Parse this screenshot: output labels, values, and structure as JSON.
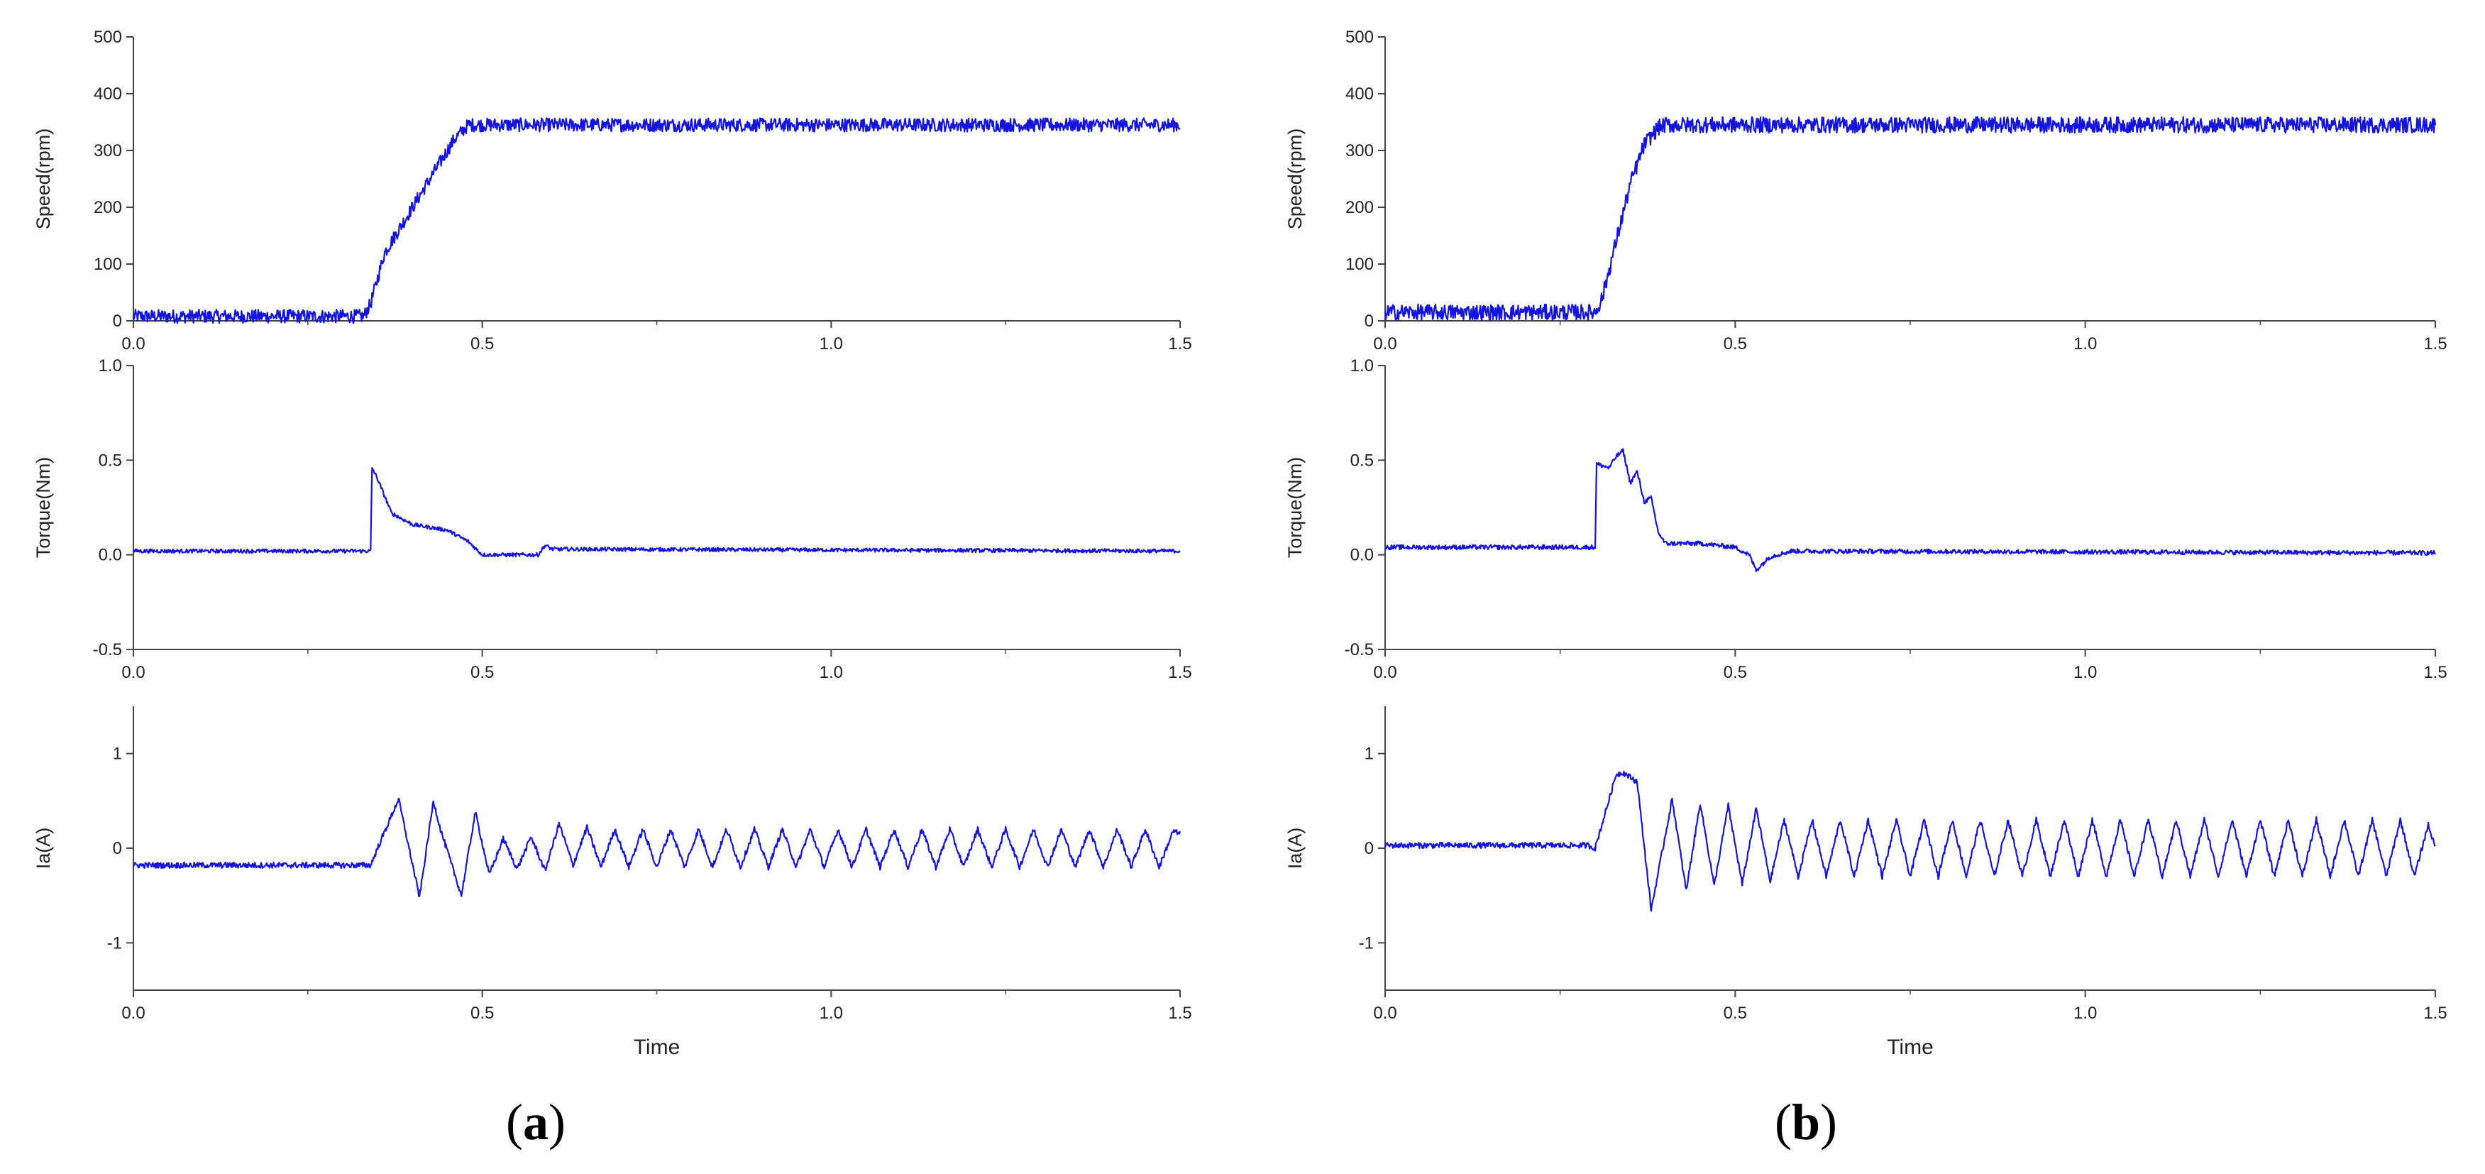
{
  "line_color": "#1414e0",
  "axis_color": "#444444",
  "panels": [
    {
      "label_open": "(",
      "label_letter": "a",
      "label_close": ")"
    },
    {
      "label_open": "(",
      "label_letter": "b",
      "label_close": ")"
    }
  ],
  "chart_data": [
    {
      "type": "line",
      "panel": "a",
      "ylabel": "Speed(rpm)",
      "xlabel": "",
      "xlim": [
        0,
        1.5
      ],
      "ylim": [
        0,
        500
      ],
      "xticks": [
        "0.0",
        "0.5",
        "1.0",
        "1.5"
      ],
      "yticks": [
        "0",
        "100",
        "200",
        "300",
        "400",
        "500"
      ],
      "series": [
        {
          "x": [
            0,
            0.33,
            0.34,
            0.36,
            0.38,
            0.4,
            0.43,
            0.46,
            0.48,
            0.5,
            1.0,
            1.5
          ],
          "y": [
            8,
            8,
            30,
            120,
            160,
            200,
            260,
            320,
            345,
            345,
            345,
            345
          ],
          "noise": 12
        }
      ]
    },
    {
      "type": "line",
      "panel": "a",
      "ylabel": "Torque(Nm)",
      "xlabel": "",
      "xlim": [
        0,
        1.5
      ],
      "ylim": [
        -0.5,
        1.0
      ],
      "xticks": [
        "0.0",
        "0.5",
        "1.0",
        "1.5"
      ],
      "yticks": [
        "-0.5",
        "0.0",
        "0.5",
        "1.0"
      ],
      "series": [
        {
          "x": [
            0,
            0.34,
            0.342,
            0.35,
            0.37,
            0.4,
            0.45,
            0.48,
            0.5,
            0.58,
            0.59,
            0.6,
            1.5
          ],
          "y": [
            0.02,
            0.02,
            0.46,
            0.4,
            0.22,
            0.16,
            0.13,
            0.07,
            0.0,
            0.0,
            0.05,
            0.03,
            0.02
          ],
          "noise": 0.01
        }
      ]
    },
    {
      "type": "line",
      "panel": "a",
      "ylabel": "Ia(A)",
      "xlabel": "Time",
      "xlim": [
        0,
        1.5
      ],
      "ylim": [
        -1.5,
        1.5
      ],
      "xticks": [
        "0.0",
        "0.5",
        "1.0",
        "1.5"
      ],
      "yticks": [
        "-1",
        "0",
        "1"
      ],
      "series": [
        {
          "x": [
            0,
            0.34,
            0.35,
            0.38,
            0.41,
            0.43,
            0.44,
            0.47,
            0.49,
            0.51,
            0.53,
            0.55,
            0.57,
            0.59,
            0.61,
            0.63,
            0.65,
            0.67,
            0.69,
            0.71,
            0.73,
            0.75,
            0.77,
            0.79,
            0.81,
            0.83,
            0.85,
            0.87,
            0.89,
            0.91,
            0.93,
            0.95,
            0.97,
            0.99,
            1.01,
            1.03,
            1.05,
            1.07,
            1.09,
            1.11,
            1.13,
            1.15,
            1.17,
            1.19,
            1.21,
            1.23,
            1.25,
            1.27,
            1.29,
            1.31,
            1.33,
            1.35,
            1.37,
            1.39,
            1.41,
            1.43,
            1.45,
            1.47,
            1.49,
            1.5
          ],
          "y": [
            -0.18,
            -0.18,
            0.0,
            0.52,
            -0.52,
            0.5,
            0.2,
            -0.5,
            0.38,
            -0.28,
            0.1,
            -0.22,
            0.12,
            -0.24,
            0.26,
            -0.18,
            0.22,
            -0.2,
            0.2,
            -0.2,
            0.2,
            -0.2,
            0.2,
            -0.2,
            0.2,
            -0.2,
            0.2,
            -0.2,
            0.2,
            -0.2,
            0.2,
            -0.2,
            0.2,
            -0.2,
            0.2,
            -0.2,
            0.2,
            -0.2,
            0.2,
            -0.2,
            0.2,
            -0.2,
            0.2,
            -0.2,
            0.2,
            -0.2,
            0.2,
            -0.2,
            0.2,
            -0.2,
            0.2,
            -0.2,
            0.2,
            -0.2,
            0.2,
            -0.2,
            0.2,
            -0.2,
            0.18,
            0.15
          ],
          "noise": 0.03
        }
      ]
    },
    {
      "type": "line",
      "panel": "b",
      "ylabel": "Speed(rpm)",
      "xlabel": "",
      "xlim": [
        0,
        1.5
      ],
      "ylim": [
        0,
        500
      ],
      "xticks": [
        "0.0",
        "0.5",
        "1.0",
        "1.5"
      ],
      "yticks": [
        "0",
        "100",
        "200",
        "300",
        "400",
        "500"
      ],
      "series": [
        {
          "x": [
            0,
            0.3,
            0.31,
            0.33,
            0.35,
            0.37,
            0.39,
            0.4,
            1.0,
            1.5
          ],
          "y": [
            15,
            15,
            40,
            140,
            240,
            310,
            340,
            345,
            345,
            345
          ],
          "noise": 14
        }
      ]
    },
    {
      "type": "line",
      "panel": "b",
      "ylabel": "Torque(Nm)",
      "xlabel": "",
      "xlim": [
        0,
        1.5
      ],
      "ylim": [
        -0.5,
        1.0
      ],
      "xticks": [
        "0.0",
        "0.5",
        "1.0",
        "1.5"
      ],
      "yticks": [
        "-0.5",
        "0.0",
        "0.5",
        "1.0"
      ],
      "series": [
        {
          "x": [
            0,
            0.3,
            0.302,
            0.32,
            0.33,
            0.34,
            0.35,
            0.36,
            0.37,
            0.38,
            0.39,
            0.4,
            0.45,
            0.5,
            0.52,
            0.53,
            0.55,
            0.58,
            1.5
          ],
          "y": [
            0.04,
            0.04,
            0.48,
            0.46,
            0.52,
            0.55,
            0.38,
            0.44,
            0.28,
            0.3,
            0.12,
            0.06,
            0.06,
            0.04,
            0.0,
            -0.08,
            -0.01,
            0.02,
            0.01
          ],
          "noise": 0.012
        }
      ]
    },
    {
      "type": "line",
      "panel": "b",
      "ylabel": "Ia(A)",
      "xlabel": "Time",
      "xlim": [
        0,
        1.5
      ],
      "ylim": [
        -1.5,
        1.5
      ],
      "xticks": [
        "0.0",
        "0.5",
        "1.0",
        "1.5"
      ],
      "yticks": [
        "-1",
        "0",
        "1"
      ],
      "series": [
        {
          "x": [
            0,
            0.29,
            0.3,
            0.33,
            0.34,
            0.36,
            0.38,
            0.41,
            0.43,
            0.45,
            0.47,
            0.49,
            0.51,
            0.53,
            0.55,
            0.57,
            0.59,
            0.61,
            0.63,
            0.65,
            0.67,
            0.69,
            0.71,
            0.73,
            0.75,
            0.77,
            0.79,
            0.81,
            0.83,
            0.85,
            0.87,
            0.89,
            0.91,
            0.93,
            0.95,
            0.97,
            0.99,
            1.01,
            1.03,
            1.05,
            1.07,
            1.09,
            1.11,
            1.13,
            1.15,
            1.17,
            1.19,
            1.21,
            1.23,
            1.25,
            1.27,
            1.29,
            1.31,
            1.33,
            1.35,
            1.37,
            1.39,
            1.41,
            1.43,
            1.45,
            1.47,
            1.49,
            1.5
          ],
          "y": [
            0.03,
            0.03,
            0.0,
            0.78,
            0.8,
            0.7,
            -0.65,
            0.52,
            -0.45,
            0.48,
            -0.4,
            0.45,
            -0.38,
            0.42,
            -0.35,
            0.3,
            -0.3,
            0.3,
            -0.3,
            0.3,
            -0.3,
            0.3,
            -0.3,
            0.3,
            -0.3,
            0.3,
            -0.3,
            0.3,
            -0.3,
            0.3,
            -0.3,
            0.3,
            -0.3,
            0.3,
            -0.3,
            0.3,
            -0.3,
            0.3,
            -0.3,
            0.3,
            -0.3,
            0.3,
            -0.3,
            0.3,
            -0.3,
            0.3,
            -0.3,
            0.3,
            -0.3,
            0.3,
            -0.3,
            0.3,
            -0.3,
            0.3,
            -0.3,
            0.3,
            -0.3,
            0.3,
            -0.3,
            0.3,
            -0.3,
            0.25,
            0.0
          ],
          "noise": 0.03
        }
      ]
    }
  ]
}
